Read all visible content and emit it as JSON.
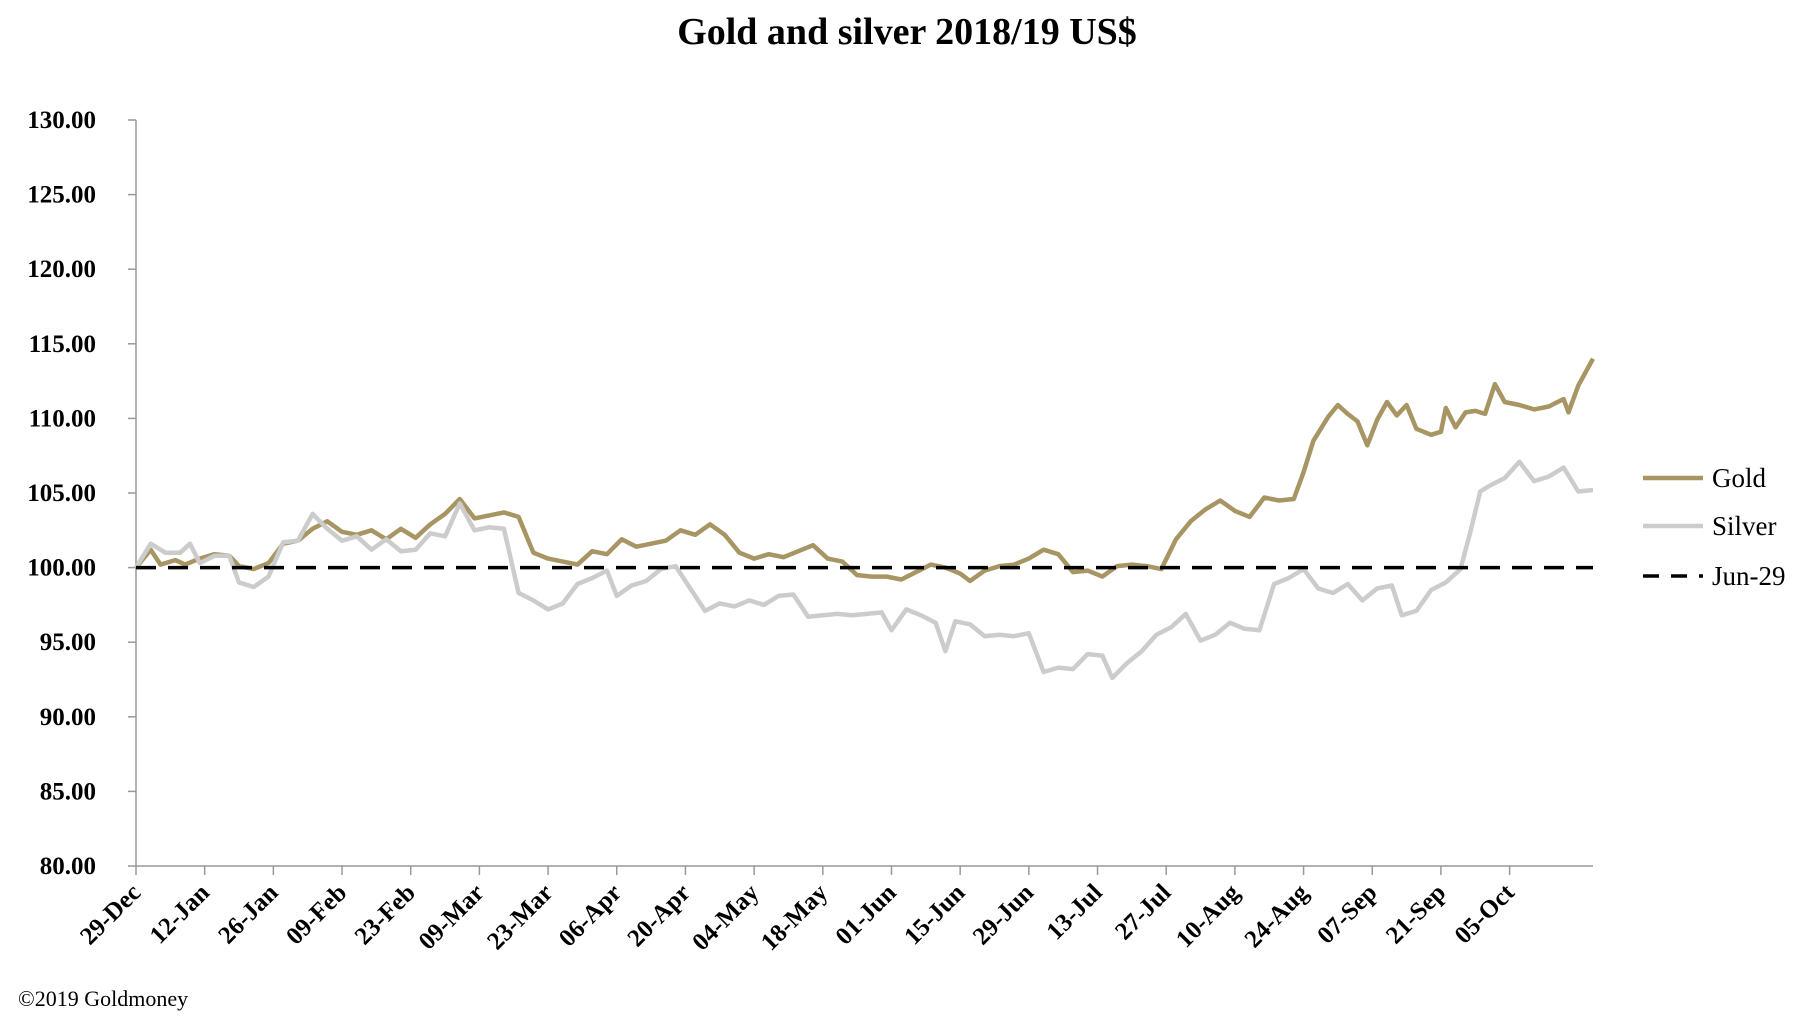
{
  "chart_data": {
    "type": "line",
    "title": "Gold and silver 2018/19  US$",
    "xlabel": "",
    "ylabel": "",
    "ylim": [
      80,
      130
    ],
    "y_ticks": [
      "80.00",
      "85.00",
      "90.00",
      "95.00",
      "100.00",
      "105.00",
      "110.00",
      "115.00",
      "120.00",
      "125.00",
      "130.00"
    ],
    "x_categories": [
      "29-Dec",
      "12-Jan",
      "26-Jan",
      "09-Feb",
      "23-Feb",
      "09-Mar",
      "23-Mar",
      "06-Apr",
      "20-Apr",
      "04-May",
      "18-May",
      "01-Jun",
      "15-Jun",
      "29-Jun",
      "13-Jul",
      "27-Jul",
      "10-Aug",
      "24-Aug",
      "07-Sep",
      "21-Sep",
      "05-Oct"
    ],
    "x_day_range": [
      0,
      297
    ],
    "legend_position": "right",
    "grid": false,
    "series": [
      {
        "name": "Gold",
        "color": "#a89564",
        "style": "solid",
        "points": [
          [
            0,
            100
          ],
          [
            3,
            101.2
          ],
          [
            5,
            100.2
          ],
          [
            8,
            100.5
          ],
          [
            10,
            100.2
          ],
          [
            13,
            100.6
          ],
          [
            16,
            100.9
          ],
          [
            19,
            100.8
          ],
          [
            21,
            100.1
          ],
          [
            24,
            99.9
          ],
          [
            27,
            100.3
          ],
          [
            30,
            101.6
          ],
          [
            33,
            101.8
          ],
          [
            36,
            102.6
          ],
          [
            39,
            103.1
          ],
          [
            42,
            102.4
          ],
          [
            45,
            102.2
          ],
          [
            48,
            102.5
          ],
          [
            51,
            101.9
          ],
          [
            54,
            102.6
          ],
          [
            57,
            102.0
          ],
          [
            60,
            102.9
          ],
          [
            63,
            103.6
          ],
          [
            66,
            104.6
          ],
          [
            69,
            103.3
          ],
          [
            72,
            103.5
          ],
          [
            75,
            103.7
          ],
          [
            78,
            103.4
          ],
          [
            81,
            101.0
          ],
          [
            84,
            100.6
          ],
          [
            87,
            100.4
          ],
          [
            90,
            100.2
          ],
          [
            93,
            101.1
          ],
          [
            96,
            100.9
          ],
          [
            99,
            101.9
          ],
          [
            102,
            101.4
          ],
          [
            105,
            101.6
          ],
          [
            108,
            101.8
          ],
          [
            111,
            102.5
          ],
          [
            114,
            102.2
          ],
          [
            117,
            102.9
          ],
          [
            120,
            102.2
          ],
          [
            123,
            101.0
          ],
          [
            126,
            100.6
          ],
          [
            129,
            100.9
          ],
          [
            132,
            100.7
          ],
          [
            135,
            101.1
          ],
          [
            138,
            101.5
          ],
          [
            141,
            100.6
          ],
          [
            144,
            100.4
          ],
          [
            147,
            99.5
          ],
          [
            150,
            99.4
          ],
          [
            153,
            99.4
          ],
          [
            156,
            99.2
          ],
          [
            159,
            99.7
          ],
          [
            162,
            100.2
          ],
          [
            165,
            100.0
          ],
          [
            168,
            99.6
          ],
          [
            170,
            99.1
          ],
          [
            173,
            99.8
          ],
          [
            176,
            100.1
          ],
          [
            179,
            100.2
          ],
          [
            182,
            100.6
          ],
          [
            185,
            101.2
          ],
          [
            188,
            100.9
          ],
          [
            191,
            99.7
          ],
          [
            194,
            99.8
          ],
          [
            197,
            99.4
          ],
          [
            200,
            100.1
          ],
          [
            203,
            100.2
          ],
          [
            206,
            100.1
          ],
          [
            209,
            99.9
          ],
          [
            212,
            101.9
          ],
          [
            215,
            103.1
          ],
          [
            218,
            103.9
          ],
          [
            221,
            104.5
          ],
          [
            224,
            103.8
          ],
          [
            227,
            103.4
          ],
          [
            230,
            104.7
          ],
          [
            233,
            104.5
          ],
          [
            236,
            104.6
          ],
          [
            238,
            106.4
          ],
          [
            240,
            108.5
          ],
          [
            243,
            110.1
          ],
          [
            245,
            110.9
          ],
          [
            247,
            110.3
          ],
          [
            249,
            109.8
          ],
          [
            251,
            108.2
          ],
          [
            253,
            109.9
          ],
          [
            255,
            111.1
          ],
          [
            257,
            110.2
          ],
          [
            259,
            110.9
          ],
          [
            261,
            109.3
          ],
          [
            264,
            108.9
          ],
          [
            266,
            109.1
          ],
          [
            267,
            110.7
          ],
          [
            269,
            109.4
          ],
          [
            271,
            110.4
          ],
          [
            273,
            110.5
          ],
          [
            275,
            110.3
          ],
          [
            277,
            112.3
          ],
          [
            279,
            111.1
          ],
          [
            282,
            110.9
          ],
          [
            285,
            110.6
          ],
          [
            288,
            110.8
          ],
          [
            291,
            111.3
          ],
          [
            292,
            110.4
          ],
          [
            294,
            112.2
          ],
          [
            297,
            114.0
          ]
        ]
      },
      {
        "name": "Silver",
        "color": "#cccccc",
        "style": "solid",
        "points": [
          [
            0,
            100
          ],
          [
            3,
            101.6
          ],
          [
            6,
            101.0
          ],
          [
            9,
            101.0
          ],
          [
            11,
            101.6
          ],
          [
            13,
            100.3
          ],
          [
            16,
            100.8
          ],
          [
            19,
            100.8
          ],
          [
            21,
            99.0
          ],
          [
            24,
            98.7
          ],
          [
            27,
            99.4
          ],
          [
            30,
            101.7
          ],
          [
            33,
            101.8
          ],
          [
            36,
            103.6
          ],
          [
            39,
            102.6
          ],
          [
            42,
            101.8
          ],
          [
            45,
            102.1
          ],
          [
            48,
            101.2
          ],
          [
            51,
            101.9
          ],
          [
            54,
            101.1
          ],
          [
            57,
            101.2
          ],
          [
            60,
            102.3
          ],
          [
            63,
            102.1
          ],
          [
            66,
            104.3
          ],
          [
            69,
            102.5
          ],
          [
            72,
            102.7
          ],
          [
            75,
            102.6
          ],
          [
            78,
            98.3
          ],
          [
            81,
            97.8
          ],
          [
            84,
            97.2
          ],
          [
            87,
            97.6
          ],
          [
            90,
            98.9
          ],
          [
            93,
            99.3
          ],
          [
            96,
            99.8
          ],
          [
            98,
            98.1
          ],
          [
            101,
            98.8
          ],
          [
            104,
            99.1
          ],
          [
            107,
            99.9
          ],
          [
            110,
            100.1
          ],
          [
            113,
            98.6
          ],
          [
            116,
            97.1
          ],
          [
            119,
            97.6
          ],
          [
            122,
            97.4
          ],
          [
            125,
            97.8
          ],
          [
            128,
            97.5
          ],
          [
            131,
            98.1
          ],
          [
            134,
            98.2
          ],
          [
            137,
            96.7
          ],
          [
            140,
            96.8
          ],
          [
            143,
            96.9
          ],
          [
            146,
            96.8
          ],
          [
            149,
            96.9
          ],
          [
            152,
            97.0
          ],
          [
            154,
            95.8
          ],
          [
            157,
            97.2
          ],
          [
            160,
            96.8
          ],
          [
            163,
            96.3
          ],
          [
            165,
            94.4
          ],
          [
            167,
            96.4
          ],
          [
            170,
            96.2
          ],
          [
            173,
            95.4
          ],
          [
            176,
            95.5
          ],
          [
            179,
            95.4
          ],
          [
            182,
            95.6
          ],
          [
            185,
            93.0
          ],
          [
            188,
            93.3
          ],
          [
            191,
            93.2
          ],
          [
            194,
            94.2
          ],
          [
            197,
            94.1
          ],
          [
            199,
            92.6
          ],
          [
            202,
            93.6
          ],
          [
            205,
            94.4
          ],
          [
            208,
            95.5
          ],
          [
            211,
            96.0
          ],
          [
            214,
            96.9
          ],
          [
            217,
            95.1
          ],
          [
            220,
            95.5
          ],
          [
            223,
            96.3
          ],
          [
            226,
            95.9
          ],
          [
            229,
            95.8
          ],
          [
            232,
            98.9
          ],
          [
            235,
            99.3
          ],
          [
            238,
            99.9
          ],
          [
            241,
            98.6
          ],
          [
            244,
            98.3
          ],
          [
            247,
            98.9
          ],
          [
            250,
            97.8
          ],
          [
            253,
            98.6
          ],
          [
            256,
            98.8
          ],
          [
            258,
            96.8
          ],
          [
            261,
            97.1
          ],
          [
            264,
            98.5
          ],
          [
            267,
            99.0
          ],
          [
            270,
            99.9
          ],
          [
            272,
            102.4
          ],
          [
            274,
            105.1
          ],
          [
            276,
            105.5
          ],
          [
            279,
            106.0
          ],
          [
            282,
            107.1
          ],
          [
            285,
            105.8
          ],
          [
            288,
            106.1
          ],
          [
            291,
            106.7
          ],
          [
            294,
            105.1
          ],
          [
            297,
            105.2
          ]
        ]
      },
      {
        "name": "Jun-29",
        "color": "#000000",
        "style": "dashed",
        "points": [
          [
            0,
            100
          ],
          [
            297,
            100
          ]
        ]
      }
    ]
  },
  "footer": {
    "copyright": "©2019 Goldmoney"
  }
}
